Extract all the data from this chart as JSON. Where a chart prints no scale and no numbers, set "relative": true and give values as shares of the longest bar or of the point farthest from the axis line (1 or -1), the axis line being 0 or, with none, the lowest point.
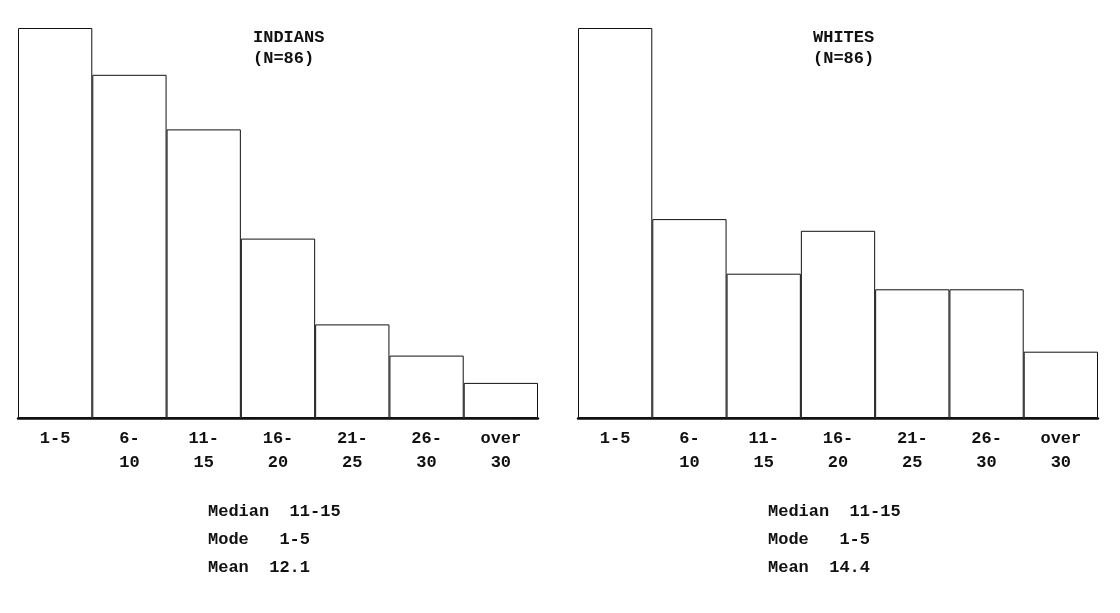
{
  "chart_data": [
    {
      "type": "bar",
      "title": "INDIANS",
      "subtitle": "(N=86)",
      "relative": true,
      "categories": [
        "1-5",
        "6-\n10",
        "11-\n15",
        "16-\n20",
        "21-\n25",
        "26-\n30",
        "over\n30"
      ],
      "values": [
        1,
        0.88,
        0.74,
        0.46,
        0.24,
        0.16,
        0.09
      ],
      "color": "#ffffff",
      "annotations": [
        "Median  11-15",
        "Mode   1-5",
        "Mean  12.1"
      ]
    },
    {
      "type": "bar",
      "title": "WHITES",
      "subtitle": "(N=86)",
      "relative": true,
      "categories": [
        "1-5",
        "6-\n10",
        "11-\n15",
        "16-\n20",
        "21-\n25",
        "26-\n30",
        "over\n30"
      ],
      "values": [
        1,
        0.51,
        0.37,
        0.48,
        0.33,
        0.33,
        0.17
      ],
      "color": "#ffffff",
      "annotations": [
        "Median  11-15",
        "Mode   1-5",
        "Mean  14.4"
      ]
    }
  ]
}
